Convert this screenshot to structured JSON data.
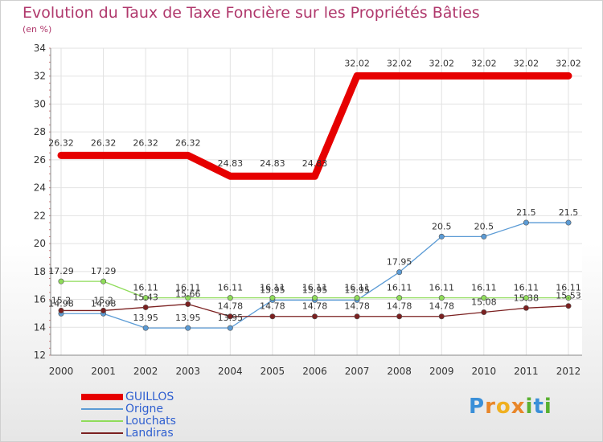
{
  "title": "Evolution du Taux de Taxe Foncière sur les Propriétés Bâties",
  "subtitle": "(en %)",
  "logo_text": "Proxiti",
  "chart_data": {
    "type": "line",
    "title": "Evolution du Taux de Taxe Foncière sur les Propriétés Bâties",
    "ylabel": "(en %)",
    "xlabel": "",
    "x": [
      2000,
      2001,
      2002,
      2003,
      2004,
      2005,
      2006,
      2007,
      2008,
      2009,
      2010,
      2011,
      2012
    ],
    "ylim": [
      12,
      34
    ],
    "yticks": [
      12,
      14,
      16,
      18,
      20,
      22,
      24,
      26,
      28,
      30,
      32,
      34
    ],
    "grid": true,
    "legend_position": "bottom-left",
    "series": [
      {
        "name": "GUILLOS",
        "color": "#e60000",
        "marker": false,
        "values": [
          26.32,
          26.32,
          26.32,
          26.32,
          24.83,
          24.83,
          24.83,
          32.02,
          32.02,
          32.02,
          32.02,
          32.02,
          32.02
        ],
        "labels": [
          "26.32",
          "26.32",
          "26.32",
          "26.32",
          "24.83",
          "24.83",
          "24.83",
          "32.02",
          "32.02",
          "32.02",
          "32.02",
          "32.02",
          "32.02"
        ]
      },
      {
        "name": "Origne",
        "color": "#5b9bd5",
        "marker": true,
        "values": [
          14.98,
          14.98,
          13.95,
          13.95,
          13.95,
          15.95,
          15.95,
          15.95,
          17.95,
          20.5,
          20.5,
          21.5,
          21.5
        ],
        "labels": [
          "14.98",
          "14.98",
          "13.95",
          "13.95",
          "13.95",
          "15.95",
          "15.95",
          "15.95",
          "17.95",
          "20.5",
          "20.5",
          "21.5",
          "21.5"
        ]
      },
      {
        "name": "Louchats",
        "color": "#8fdc5a",
        "marker": true,
        "values": [
          17.29,
          17.29,
          16.11,
          16.11,
          16.11,
          16.11,
          16.11,
          16.11,
          16.11,
          16.11,
          16.11,
          16.11,
          16.11
        ],
        "labels": [
          "17.29",
          "17.29",
          "16.11",
          "16.11",
          "16.11",
          "16.11",
          "16.11",
          "16.11",
          "16.11",
          "16.11",
          "16.11",
          "16.11",
          "16.11"
        ]
      },
      {
        "name": "Landiras",
        "color": "#7b2020",
        "marker": true,
        "values": [
          15.2,
          15.2,
          15.43,
          15.66,
          14.78,
          14.78,
          14.78,
          14.78,
          14.78,
          14.78,
          15.08,
          15.38,
          15.53
        ],
        "labels": [
          "15.2",
          "15.2",
          "15.43",
          "15.66",
          "14.78",
          "14.78",
          "14.78",
          "14.78",
          "14.78",
          "14.78",
          "15.08",
          "15.38",
          "15.53"
        ]
      }
    ]
  }
}
